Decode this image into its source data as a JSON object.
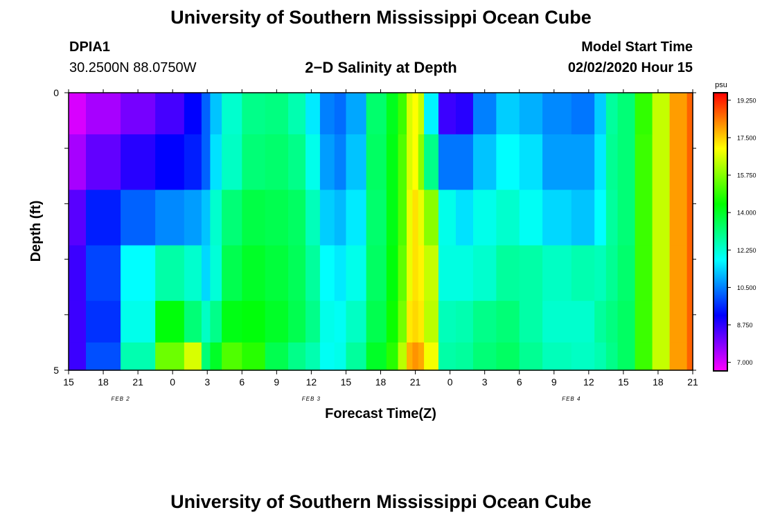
{
  "header": {
    "title": "University of Southern Mississippi Ocean Cube",
    "footer_title": "University of Southern Mississippi Ocean Cube",
    "station_id": "DPIA1",
    "station_coords": "30.2500N 88.0750W",
    "plot_title": "2−D Salinity at Depth",
    "model_start_label": "Model Start Time",
    "model_start_value": "02/02/2020 Hour 15"
  },
  "chart_data": {
    "type": "heatmap",
    "title": "2−D Salinity at Depth",
    "xlabel": "Forecast Time(Z)",
    "ylabel": "Depth (ft)",
    "x_ticks": [
      "15",
      "18",
      "21",
      "0",
      "3",
      "6",
      "9",
      "12",
      "15",
      "18",
      "21",
      "0",
      "3",
      "6",
      "9",
      "12",
      "15",
      "18",
      "21"
    ],
    "x_hours": [
      0,
      54
    ],
    "date_labels": [
      {
        "text": "FEB 2",
        "hour": 4.5
      },
      {
        "text": "FEB 3",
        "hour": 21
      },
      {
        "text": "FEB 4",
        "hour": 43.5
      }
    ],
    "y_ticks": [
      "0",
      "5"
    ],
    "ylim": [
      0,
      5
    ],
    "depth_levels": [
      0.25,
      1.25,
      2.25,
      3.25,
      4.25,
      4.75
    ],
    "colorbar": {
      "unit": "psu",
      "range": [
        6.6,
        19.6
      ],
      "tick_values": [
        7.0,
        8.75,
        10.5,
        12.25,
        14.0,
        15.75,
        17.5,
        19.25
      ],
      "tick_labels": [
        "7.000",
        "8.750",
        "10.500",
        "12.250",
        "14.000",
        "15.750",
        "17.500",
        "19.250"
      ]
    },
    "hours": [
      0,
      3,
      6,
      9,
      11,
      12,
      12.5,
      14,
      16,
      18,
      20,
      21,
      22.5,
      23.5,
      24.5,
      27,
      28,
      29,
      29.5,
      30,
      30.5,
      31,
      33,
      34,
      36,
      38,
      40,
      42,
      45,
      46,
      47,
      48,
      50,
      51,
      53,
      54
    ],
    "values": [
      [
        7.0,
        7.5,
        8.0,
        8.5,
        9.2,
        10.2,
        11.2,
        12.3,
        13.0,
        13.1,
        12.6,
        11.6,
        10.5,
        10.3,
        10.9,
        13.3,
        14.1,
        15.0,
        16.6,
        17.0,
        16.4,
        11.7,
        8.6,
        8.8,
        10.5,
        11.3,
        11.0,
        10.6,
        10.4,
        11.3,
        12.8,
        13.2,
        14.9,
        16.4,
        18.0,
        18.6
      ],
      [
        7.5,
        8.2,
        8.8,
        9.2,
        9.5,
        10.2,
        11.5,
        12.4,
        13.2,
        13.3,
        13.0,
        12.0,
        10.8,
        10.5,
        11.2,
        13.4,
        14.2,
        15.2,
        16.6,
        17.0,
        15.8,
        13.0,
        10.4,
        10.4,
        11.2,
        11.8,
        11.5,
        10.8,
        10.8,
        11.6,
        12.9,
        13.2,
        15.0,
        16.4,
        18.0,
        18.6
      ],
      [
        8.3,
        9.5,
        10.2,
        10.6,
        10.8,
        11.2,
        12.3,
        13.2,
        13.7,
        13.6,
        13.4,
        12.5,
        11.3,
        11.1,
        11.6,
        13.3,
        14.2,
        15.2,
        16.8,
        17.3,
        16.8,
        15.8,
        12.0,
        11.5,
        12.0,
        12.3,
        11.9,
        11.4,
        11.2,
        11.8,
        12.8,
        13.2,
        15.0,
        16.4,
        18.0,
        18.6
      ],
      [
        8.6,
        9.9,
        11.8,
        12.7,
        12.3,
        11.4,
        12.2,
        13.6,
        14.0,
        13.8,
        13.5,
        12.8,
        11.8,
        11.6,
        12.0,
        13.4,
        14.3,
        15.4,
        16.8,
        17.3,
        17.1,
        16.4,
        12.1,
        12.1,
        12.3,
        12.8,
        12.7,
        12.4,
        12.6,
        12.5,
        12.9,
        13.3,
        15.0,
        16.4,
        18.0,
        18.6
      ],
      [
        8.6,
        9.7,
        12.0,
        14.3,
        13.2,
        12.4,
        13.0,
        14.2,
        14.3,
        14.0,
        13.6,
        13.0,
        12.0,
        11.9,
        12.4,
        13.6,
        14.5,
        15.6,
        17.2,
        17.4,
        17.2,
        16.3,
        12.5,
        12.6,
        13.0,
        13.2,
        12.7,
        12.3,
        12.3,
        12.8,
        13.1,
        13.4,
        15.0,
        16.4,
        18.0,
        18.6
      ],
      [
        8.6,
        10.0,
        12.6,
        15.5,
        16.6,
        13.2,
        14.0,
        15.2,
        14.8,
        13.6,
        13.0,
        12.6,
        11.9,
        12.0,
        12.8,
        14.0,
        14.8,
        16.3,
        17.8,
        18.1,
        17.9,
        16.9,
        12.7,
        12.8,
        13.2,
        13.4,
        12.9,
        12.5,
        12.4,
        12.6,
        13.0,
        13.4,
        15.0,
        16.4,
        18.0,
        18.6
      ]
    ]
  }
}
